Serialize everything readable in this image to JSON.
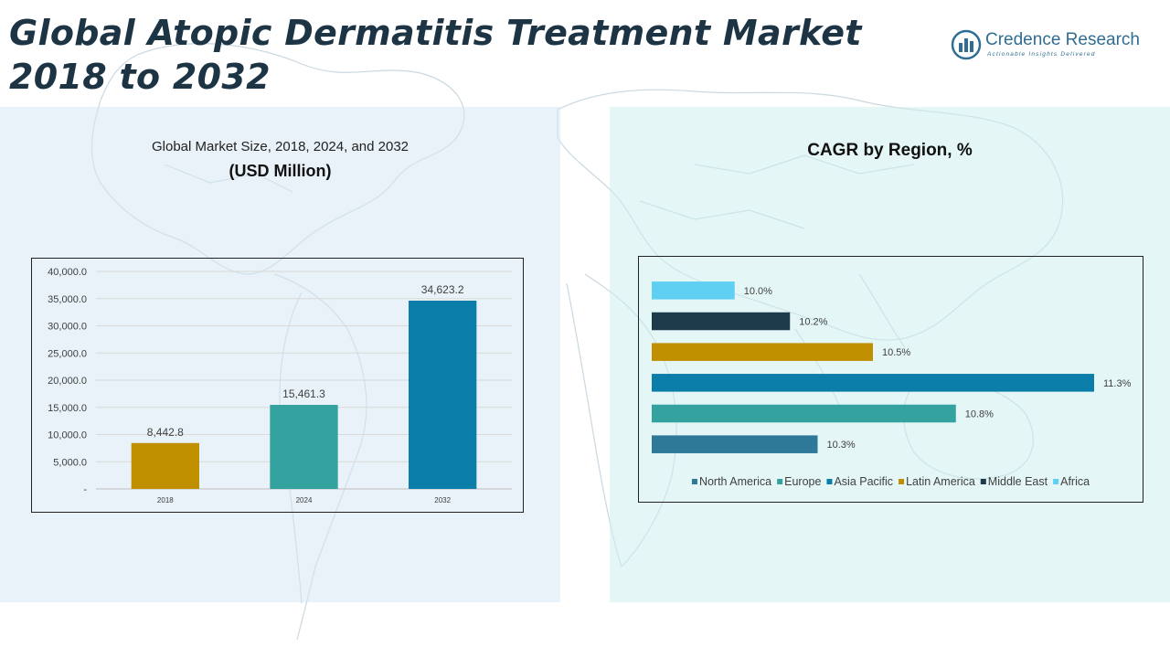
{
  "page": {
    "title": "Global Atopic Dermatitis Treatment Market 2018 to 2032"
  },
  "logo": {
    "name": "Credence Research",
    "tagline": "Actionable Insights Delivered",
    "icon": "bar-chart-circle-icon"
  },
  "left_chart": {
    "title_line1": "Global Market Size, 2018, 2024, and 2032",
    "title_line2": "(USD Million)"
  },
  "right_chart": {
    "title": "CAGR by Region, %"
  },
  "colors": {
    "title": "#1d3444",
    "gold": "#bf8f00",
    "teal": "#34a29f",
    "blue": "#0a7ea9",
    "navy": "#1c3a4a",
    "sky": "#5fd0f2",
    "steel": "#2e7898"
  },
  "chart_data": [
    {
      "type": "bar",
      "categories": [
        "2018",
        "2024",
        "2032"
      ],
      "values": [
        8442.8,
        15461.3,
        34623.2
      ],
      "value_labels": [
        "8,442.8",
        "15,461.3",
        "34,623.2"
      ],
      "colors": [
        "#bf8f00",
        "#34a29f",
        "#0a7ea9"
      ],
      "ylim": [
        0,
        40000
      ],
      "yticks": [
        0,
        5000,
        10000,
        15000,
        20000,
        25000,
        30000,
        35000,
        40000
      ],
      "ytick_labels": [
        "-",
        "5,000.0",
        "10,000.0",
        "15,000.0",
        "20,000.0",
        "25,000.0",
        "30,000.0",
        "35,000.0",
        "40,000.0"
      ],
      "grid": true
    },
    {
      "type": "bar",
      "orientation": "horizontal",
      "categories": [
        "North America",
        "Europe",
        "Asia Pacific",
        "Latin America",
        "Middle East",
        "Africa"
      ],
      "values": [
        10.3,
        10.8,
        11.3,
        10.5,
        10.2,
        10.0
      ],
      "value_labels": [
        "10.3%",
        "10.8%",
        "11.3%",
        "10.5%",
        "10.2%",
        "10.0%"
      ],
      "colors": [
        "#2e7898",
        "#34a29f",
        "#0a7ea9",
        "#bf8f00",
        "#1c3a4a",
        "#5fd0f2"
      ],
      "xlim": [
        9.7,
        11.3
      ],
      "legend": "bottom",
      "grid": false
    }
  ]
}
